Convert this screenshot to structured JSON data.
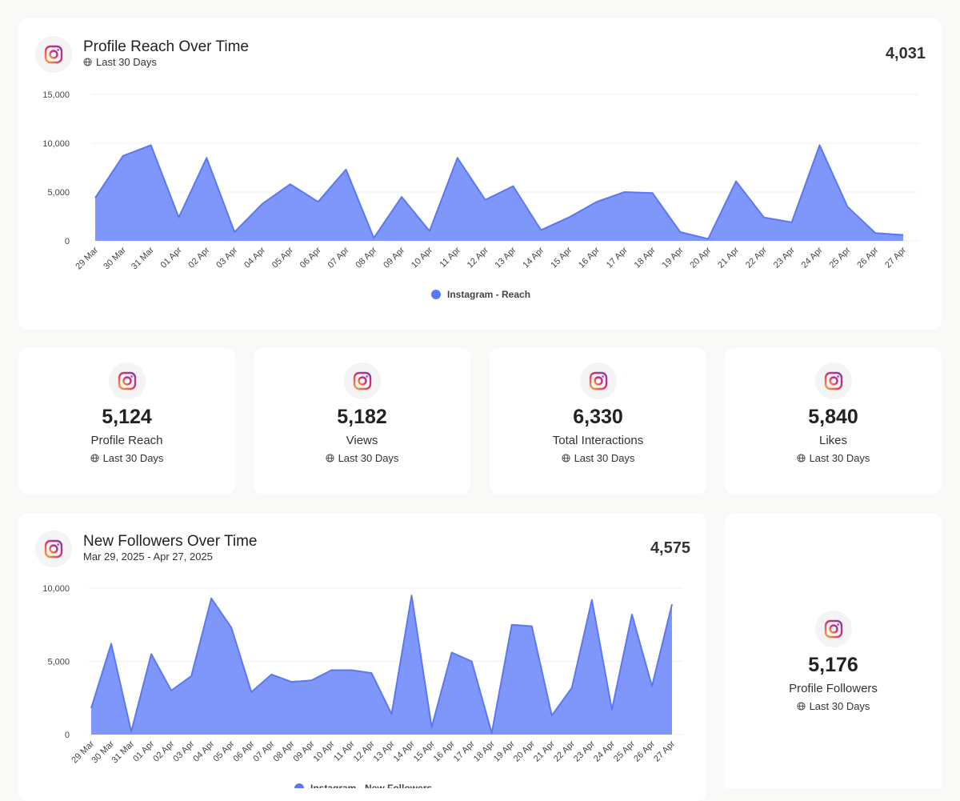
{
  "colors": {
    "accent": "#5b77f5",
    "fill": "#7f97fb"
  },
  "icons": {
    "brand": "instagram-icon",
    "globe": "globe-icon"
  },
  "reach_card": {
    "title": "Profile Reach Over Time",
    "subtitle": "Last 30 Days",
    "total": "4,031"
  },
  "kpis": [
    {
      "value": "5,124",
      "label": "Profile Reach",
      "period": "Last 30 Days"
    },
    {
      "value": "5,182",
      "label": "Views",
      "period": "Last 30 Days"
    },
    {
      "value": "6,330",
      "label": "Total Interactions",
      "period": "Last 30 Days"
    },
    {
      "value": "5,840",
      "label": "Likes",
      "period": "Last 30 Days"
    }
  ],
  "followers_card": {
    "title": "New Followers Over Time",
    "subtitle": "Mar 29, 2025 - Apr 27, 2025",
    "total": "4,575"
  },
  "followers_kpi": {
    "value": "5,176",
    "label": "Profile Followers",
    "period": "Last 30 Days"
  },
  "chart_data": [
    {
      "type": "area",
      "title": "Profile Reach Over Time",
      "categories": [
        "29 Mar",
        "30 Mar",
        "31 Mar",
        "01 Apr",
        "02 Apr",
        "03 Apr",
        "04 Apr",
        "05 Apr",
        "06 Apr",
        "07 Apr",
        "08 Apr",
        "09 Apr",
        "10 Apr",
        "11 Apr",
        "12 Apr",
        "13 Apr",
        "14 Apr",
        "15 Apr",
        "16 Apr",
        "17 Apr",
        "18 Apr",
        "19 Apr",
        "20 Apr",
        "21 Apr",
        "22 Apr",
        "23 Apr",
        "24 Apr",
        "25 Apr",
        "26 Apr",
        "27 Apr"
      ],
      "yticks": [
        "0",
        "5,000",
        "10,000",
        "15,000"
      ],
      "ylim": [
        0,
        15000
      ],
      "grid": true,
      "legend": "bottom-center",
      "series": [
        {
          "name": "Instagram - Reach",
          "values": [
            4400,
            8700,
            9800,
            2400,
            8500,
            900,
            3800,
            5800,
            4000,
            7300,
            300,
            4500,
            1000,
            8500,
            4200,
            5600,
            1100,
            2400,
            4000,
            5000,
            4900,
            900,
            200,
            6100,
            2400,
            1900,
            9800,
            3500,
            800,
            600
          ]
        }
      ]
    },
    {
      "type": "area",
      "title": "New Followers Over Time",
      "categories": [
        "29 Mar",
        "30 Mar",
        "31 Mar",
        "01 Apr",
        "02 Apr",
        "03 Apr",
        "04 Apr",
        "05 Apr",
        "06 Apr",
        "07 Apr",
        "08 Apr",
        "09 Apr",
        "10 Apr",
        "11 Apr",
        "12 Apr",
        "13 Apr",
        "14 Apr",
        "15 Apr",
        "16 Apr",
        "17 Apr",
        "18 Apr",
        "19 Apr",
        "20 Apr",
        "21 Apr",
        "22 Apr",
        "23 Apr",
        "24 Apr",
        "25 Apr",
        "26 Apr",
        "27 Apr"
      ],
      "yticks": [
        "0",
        "5,000",
        "10,000"
      ],
      "ylim": [
        0,
        10000
      ],
      "grid": true,
      "legend": "bottom-center",
      "series": [
        {
          "name": "Instagram - New Followers",
          "values": [
            1800,
            6200,
            200,
            5500,
            3000,
            4000,
            9300,
            7300,
            2900,
            4100,
            3600,
            3700,
            4400,
            4400,
            4200,
            1400,
            9500,
            500,
            5600,
            5000,
            100,
            7500,
            7400,
            1300,
            3200,
            9200,
            1700,
            8200,
            3300,
            8900
          ]
        }
      ]
    }
  ]
}
